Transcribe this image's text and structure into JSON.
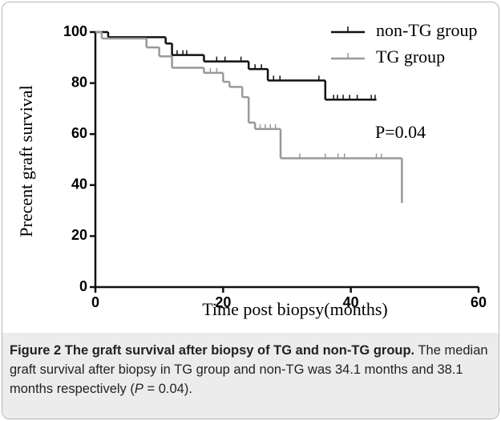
{
  "chart_data": {
    "type": "step",
    "xlabel": "Time post biopsy(months)",
    "ylabel": "Precent graft survival",
    "xlim": [
      0,
      60
    ],
    "ylim": [
      0,
      100
    ],
    "xticks": [
      0,
      20,
      40,
      60
    ],
    "yticks": [
      0,
      20,
      40,
      60,
      80,
      100
    ],
    "annotation": "P=0.04",
    "series": [
      {
        "name": "non-TG group",
        "color": "#111111",
        "x": [
          0,
          2,
          11,
          12,
          17,
          24,
          27,
          36,
          44
        ],
        "values": [
          100,
          98,
          95.5,
          91,
          88.5,
          85.5,
          81,
          73.5,
          73.5
        ],
        "censored": {
          "x": [
            12.8,
            13.7,
            14.3,
            19,
            20.3,
            22.8,
            25,
            26,
            27.9,
            28.9,
            35,
            37.3,
            37.9,
            38.8,
            39.8,
            41,
            43.2,
            43.8
          ],
          "values": [
            91,
            91,
            91,
            88.5,
            88.5,
            88.5,
            85.5,
            85.5,
            81,
            81,
            81,
            73.5,
            73.5,
            73.5,
            73.5,
            73.5,
            73.5,
            73.5
          ]
        }
      },
      {
        "name": "TG group",
        "color": "#999999",
        "x": [
          0,
          1,
          8,
          10,
          12,
          17,
          20,
          21,
          23,
          24,
          25,
          29,
          48
        ],
        "values": [
          100,
          97.5,
          94,
          90.5,
          86,
          84,
          80.5,
          78.5,
          74.5,
          64.5,
          62,
          50.5,
          33
        ],
        "censored": {
          "x": [
            18,
            19,
            25.8,
            26.6,
            27.4,
            28.2,
            32,
            36,
            38,
            39,
            44,
            44.8
          ],
          "values": [
            84,
            84,
            62,
            62,
            62,
            62,
            50.5,
            50.5,
            50.5,
            50.5,
            50.5,
            50.5
          ]
        }
      }
    ]
  },
  "caption": {
    "label": "Figure 2",
    "title": "The graft survival after biopsy of TG and non-TG group.",
    "text_before": "The median graft survival after biopsy in TG group and non-TG was 34.1 months and 38.1 months respectively (",
    "text_italic": "P",
    "text_after": " = 0.04)."
  }
}
